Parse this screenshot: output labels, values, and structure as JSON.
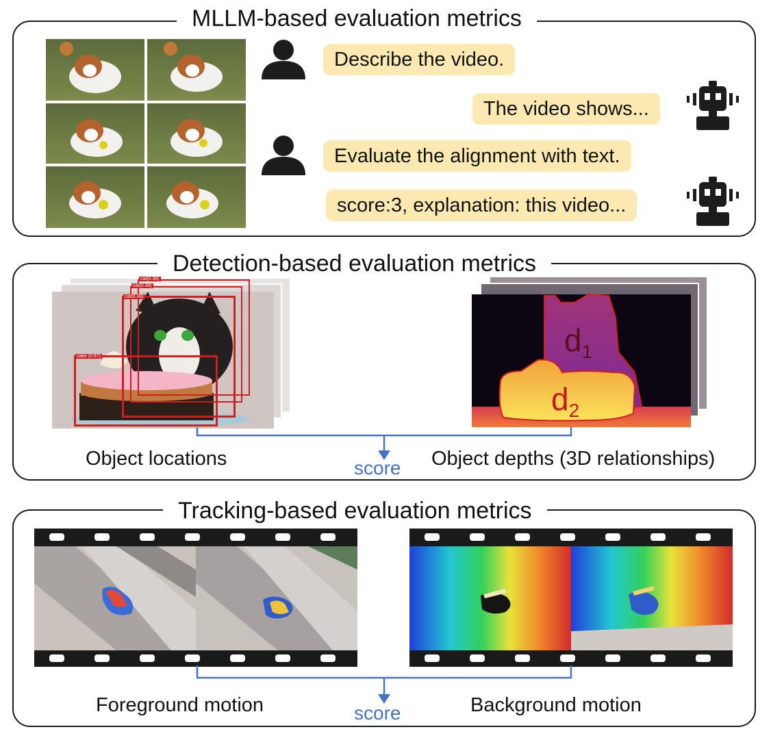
{
  "mllm": {
    "title": "MLLM-based evaluation metrics",
    "messages": [
      {
        "role": "user",
        "text": "Describe the video."
      },
      {
        "role": "model",
        "text": "The video shows..."
      },
      {
        "role": "user",
        "text": "Evaluate the alignment with text."
      },
      {
        "role": "model",
        "text": "score:3, explanation: this video..."
      }
    ],
    "icons": {
      "user": "person-icon",
      "model": "robot-icon"
    },
    "bubble_color": "#fbe9b2"
  },
  "detection": {
    "title": "Detection-based evaluation metrics",
    "left_label": "Object locations",
    "right_label": "Object depths (3D relationships)",
    "score_label": "score",
    "box_labels": [
      "cat(0.38)",
      "cat(0.38)",
      "cat(0.38)",
      "cake (0.67)"
    ],
    "depth_labels": {
      "d1_base": "d",
      "d1_sub": "1",
      "d2_base": "d",
      "d2_sub": "2"
    },
    "box_color": "#cc1f1f"
  },
  "tracking": {
    "title": "Tracking-based evaluation metrics",
    "left_label": "Foreground motion",
    "right_label": "Background motion",
    "score_label": "score"
  },
  "colors": {
    "accent": "#4472c4",
    "border": "#1a1a1a",
    "depth_outline": "#d3201c"
  }
}
